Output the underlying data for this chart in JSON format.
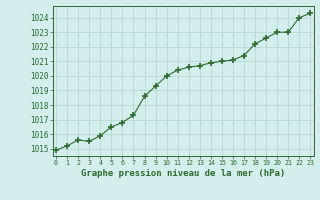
{
  "x": [
    0,
    1,
    2,
    3,
    4,
    5,
    6,
    7,
    8,
    9,
    10,
    11,
    12,
    13,
    14,
    15,
    16,
    17,
    18,
    19,
    20,
    21,
    22,
    23
  ],
  "y": [
    1014.9,
    1015.2,
    1015.6,
    1015.5,
    1015.9,
    1016.5,
    1016.8,
    1017.3,
    1018.6,
    1019.3,
    1020.0,
    1020.4,
    1020.6,
    1020.7,
    1020.9,
    1021.0,
    1021.1,
    1021.4,
    1022.2,
    1022.6,
    1023.0,
    1023.0,
    1024.0,
    1024.3
  ],
  "line_color": "#2d6a2d",
  "marker": "+",
  "marker_size": 4,
  "marker_lw": 1.2,
  "bg_color": "#d4eeed",
  "grid_color": "#b0d4d0",
  "ylabel_ticks": [
    1015,
    1016,
    1017,
    1018,
    1019,
    1020,
    1021,
    1022,
    1023,
    1024
  ],
  "xlabel_ticks": [
    0,
    1,
    2,
    3,
    4,
    5,
    6,
    7,
    8,
    9,
    10,
    11,
    12,
    13,
    14,
    15,
    16,
    17,
    18,
    19,
    20,
    21,
    22,
    23
  ],
  "ylim": [
    1014.5,
    1024.8
  ],
  "xlim": [
    -0.3,
    23.3
  ],
  "xlabel": "Graphe pression niveau de la mer (hPa)",
  "tick_color": "#2d6a2d",
  "ytick_fontsize": 5.5,
  "xtick_fontsize": 4.8,
  "xlabel_fontsize": 6.5,
  "border_color": "#2d6a2d",
  "linewidth": 0.8
}
